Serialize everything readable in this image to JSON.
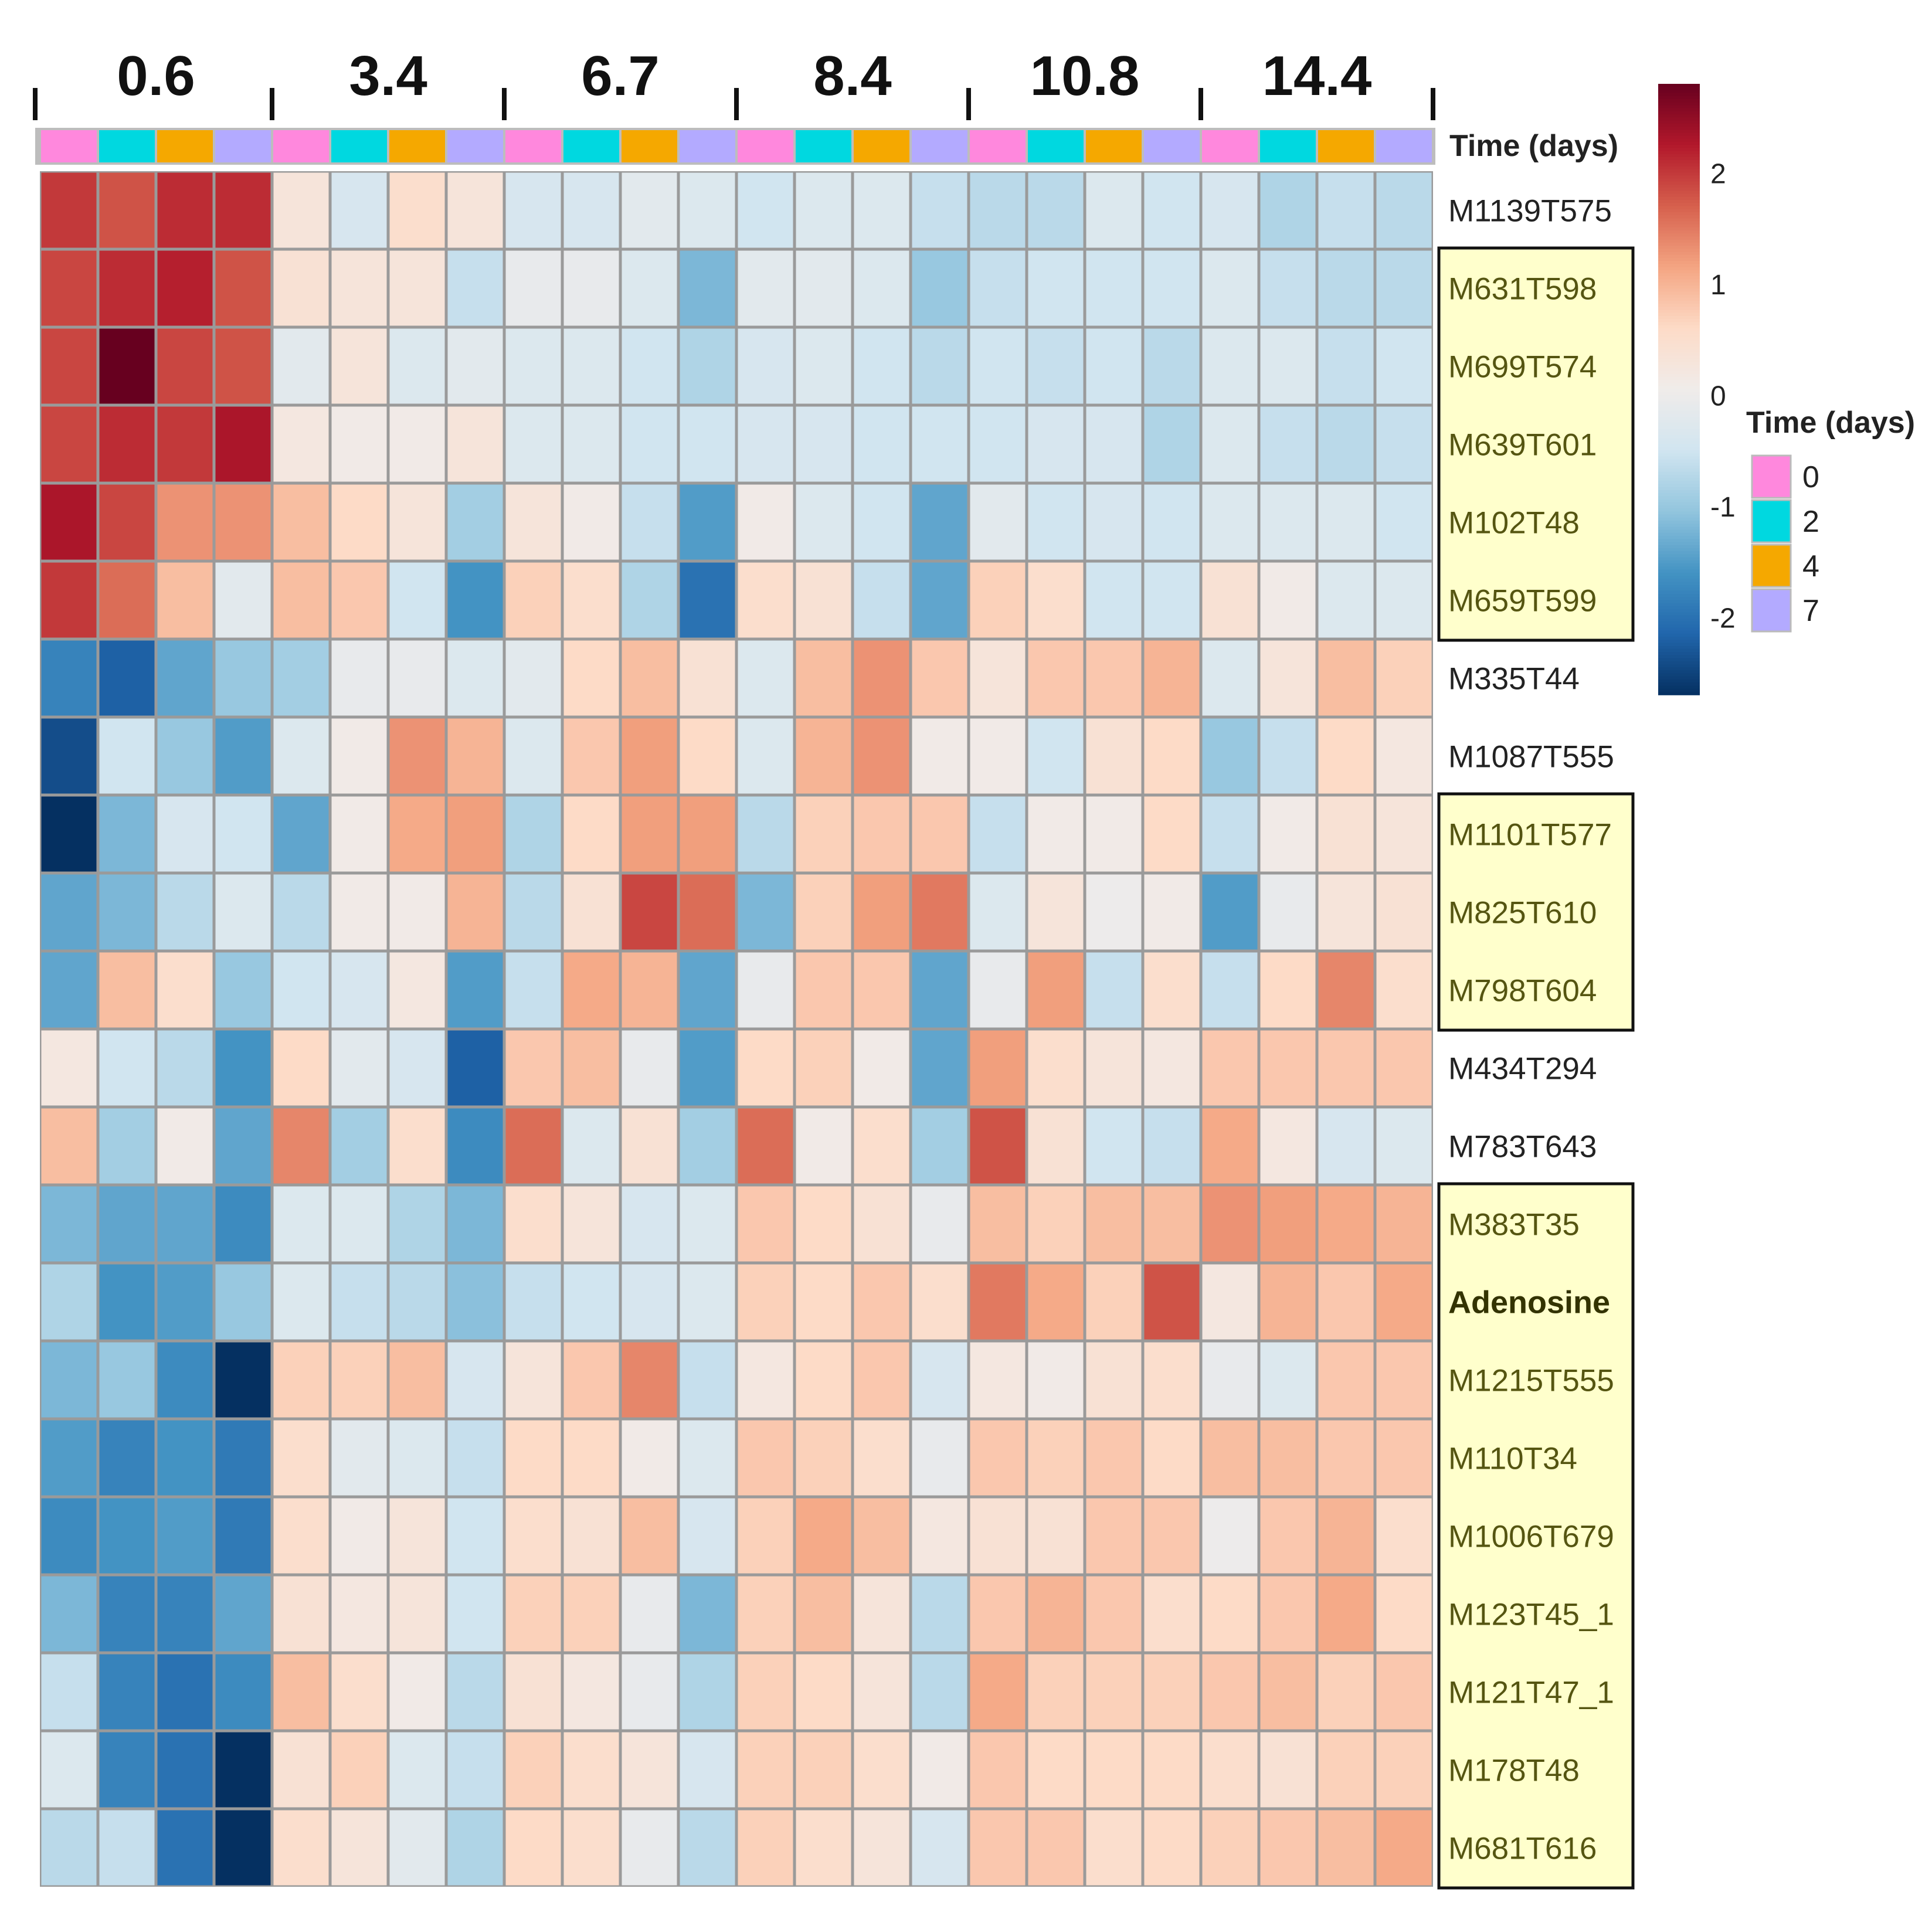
{
  "chart_data": {
    "type": "heatmap",
    "groups": [
      "0.6",
      "3.4",
      "6.7",
      "8.4",
      "10.8",
      "14.4"
    ],
    "annotation_title": "Time (days)",
    "columns_time_days": [
      "0",
      "2",
      "4",
      "7",
      "0",
      "2",
      "4",
      "7",
      "0",
      "2",
      "4",
      "7",
      "0",
      "2",
      "4",
      "7",
      "0",
      "2",
      "4",
      "7",
      "0",
      "2",
      "4",
      "7"
    ],
    "rows": [
      "M1139T575",
      "M631T598",
      "M699T574",
      "M639T601",
      "M102T48",
      "M659T599",
      "M335T44",
      "M1087T555",
      "M1101T577",
      "M825T610",
      "M798T604",
      "M434T294",
      "M783T643",
      "M383T35",
      "Adenosine",
      "M1215T555",
      "M110T34",
      "M1006T679",
      "M123T45_1",
      "M121T47_1",
      "M178T48",
      "M681T616"
    ],
    "highlighted_rows": [
      "M631T598",
      "M699T574",
      "M639T601",
      "M102T48",
      "M659T599",
      "M1101T577",
      "M825T610",
      "M798T604",
      "M383T35",
      "Adenosine",
      "M1215T555",
      "M110T34",
      "M1006T679",
      "M123T45_1",
      "M121T47_1",
      "M178T48",
      "M681T616"
    ],
    "bold_rows": [
      "Adenosine"
    ],
    "values": [
      [
        2.0,
        1.8,
        2.1,
        2.1,
        0.3,
        -0.4,
        0.5,
        0.3,
        -0.4,
        -0.4,
        -0.2,
        -0.3,
        -0.5,
        -0.3,
        -0.3,
        -0.6,
        -0.7,
        -0.7,
        -0.3,
        -0.5,
        -0.4,
        -0.8,
        -0.6,
        -0.7
      ],
      [
        1.9,
        2.1,
        2.2,
        1.8,
        0.4,
        0.3,
        0.3,
        -0.6,
        -0.1,
        -0.1,
        -0.3,
        -1.2,
        -0.2,
        -0.2,
        -0.3,
        -1.0,
        -0.6,
        -0.5,
        -0.5,
        -0.5,
        -0.3,
        -0.6,
        -0.7,
        -0.7
      ],
      [
        1.9,
        2.8,
        1.9,
        1.8,
        -0.2,
        0.3,
        -0.3,
        -0.2,
        -0.3,
        -0.3,
        -0.5,
        -0.8,
        -0.4,
        -0.3,
        -0.5,
        -0.7,
        -0.5,
        -0.6,
        -0.5,
        -0.7,
        -0.3,
        -0.3,
        -0.6,
        -0.5
      ],
      [
        1.9,
        2.1,
        2.0,
        2.3,
        0.2,
        0.1,
        0.1,
        0.3,
        -0.3,
        -0.3,
        -0.5,
        -0.5,
        -0.4,
        -0.4,
        -0.5,
        -0.5,
        -0.5,
        -0.4,
        -0.4,
        -0.8,
        -0.3,
        -0.6,
        -0.7,
        -0.6
      ],
      [
        2.3,
        1.9,
        1.3,
        1.3,
        0.9,
        0.6,
        0.3,
        -0.9,
        0.3,
        0.1,
        -0.6,
        -1.5,
        0.1,
        -0.3,
        -0.5,
        -1.4,
        -0.2,
        -0.5,
        -0.4,
        -0.5,
        -0.3,
        -0.3,
        -0.3,
        -0.5
      ],
      [
        2.0,
        1.6,
        0.9,
        -0.2,
        0.9,
        0.8,
        -0.5,
        -1.6,
        0.7,
        0.5,
        -0.8,
        -2.0,
        0.5,
        0.4,
        -0.6,
        -1.4,
        0.7,
        0.5,
        -0.5,
        -0.5,
        0.4,
        0.1,
        -0.3,
        -0.3
      ],
      [
        -1.8,
        -2.2,
        -1.4,
        -1.0,
        -0.9,
        -0.1,
        -0.1,
        -0.3,
        -0.2,
        0.6,
        0.9,
        0.4,
        -0.3,
        0.9,
        1.3,
        0.8,
        0.3,
        0.8,
        0.8,
        1.0,
        -0.3,
        0.3,
        0.9,
        0.7
      ],
      [
        -2.4,
        -0.5,
        -1.0,
        -1.5,
        -0.3,
        0.1,
        1.3,
        1.0,
        -0.3,
        0.8,
        1.2,
        0.6,
        -0.3,
        1.0,
        1.3,
        0.1,
        0.1,
        -0.5,
        0.4,
        0.6,
        -1.0,
        -0.6,
        0.6,
        0.2
      ],
      [
        -2.7,
        -1.2,
        -0.4,
        -0.5,
        -1.4,
        0.1,
        1.1,
        1.2,
        -0.8,
        0.6,
        1.2,
        1.2,
        -0.7,
        0.7,
        0.8,
        0.8,
        -0.6,
        0.1,
        0.1,
        0.6,
        -0.6,
        0.1,
        0.4,
        0.3
      ],
      [
        -1.4,
        -1.2,
        -0.7,
        -0.3,
        -0.7,
        0.1,
        0.1,
        1.0,
        -0.7,
        0.4,
        1.9,
        1.6,
        -1.2,
        0.7,
        1.2,
        1.5,
        -0.3,
        0.3,
        0.0,
        0.1,
        -1.5,
        -0.1,
        0.3,
        0.4
      ],
      [
        -1.4,
        0.9,
        0.5,
        -1.0,
        -0.5,
        -0.4,
        0.2,
        -1.5,
        -0.6,
        1.1,
        1.0,
        -1.4,
        -0.1,
        0.8,
        0.8,
        -1.4,
        -0.1,
        1.2,
        -0.6,
        0.5,
        -0.6,
        0.6,
        1.4,
        0.5
      ],
      [
        0.2,
        -0.5,
        -0.7,
        -1.6,
        0.6,
        -0.2,
        -0.4,
        -2.2,
        0.8,
        0.9,
        -0.1,
        -1.5,
        0.6,
        0.7,
        0.1,
        -1.4,
        1.2,
        0.5,
        0.3,
        0.2,
        0.8,
        0.8,
        0.8,
        0.8
      ],
      [
        0.9,
        -0.9,
        0.1,
        -1.4,
        1.4,
        -0.9,
        0.5,
        -1.7,
        1.6,
        -0.3,
        0.4,
        -0.9,
        1.6,
        0.1,
        0.5,
        -0.9,
        1.8,
        0.4,
        -0.5,
        -0.6,
        1.1,
        0.2,
        -0.4,
        -0.3
      ],
      [
        -1.2,
        -1.4,
        -1.4,
        -1.7,
        -0.3,
        -0.3,
        -0.8,
        -1.2,
        0.5,
        0.3,
        -0.4,
        -0.3,
        0.8,
        0.6,
        0.4,
        -0.1,
        0.9,
        0.7,
        0.9,
        0.9,
        1.3,
        1.2,
        1.1,
        1.0
      ],
      [
        -0.8,
        -1.6,
        -1.5,
        -1.0,
        -0.3,
        -0.6,
        -0.7,
        -1.1,
        -0.6,
        -0.5,
        -0.4,
        -0.3,
        0.7,
        0.6,
        0.8,
        0.5,
        1.5,
        1.1,
        0.7,
        1.8,
        0.2,
        1.0,
        0.8,
        1.1
      ],
      [
        -1.2,
        -1.0,
        -1.7,
        -2.7,
        0.7,
        0.7,
        0.9,
        -0.4,
        0.3,
        0.8,
        1.4,
        -0.6,
        0.2,
        0.6,
        0.8,
        -0.4,
        0.2,
        0.1,
        0.4,
        0.5,
        -0.1,
        -0.3,
        0.8,
        0.8
      ],
      [
        -1.5,
        -1.8,
        -1.6,
        -1.9,
        0.5,
        -0.2,
        -0.3,
        -0.6,
        0.6,
        0.6,
        0.1,
        -0.3,
        0.8,
        0.7,
        0.5,
        -0.1,
        0.8,
        0.7,
        0.8,
        0.6,
        0.9,
        0.9,
        0.8,
        0.8
      ],
      [
        -1.7,
        -1.6,
        -1.5,
        -1.9,
        0.5,
        0.1,
        0.3,
        -0.5,
        0.5,
        0.4,
        0.9,
        -0.4,
        0.7,
        1.1,
        0.9,
        0.2,
        0.4,
        0.4,
        0.8,
        0.8,
        0.0,
        0.8,
        1.0,
        0.5
      ],
      [
        -1.2,
        -1.8,
        -1.8,
        -1.4,
        0.4,
        0.2,
        0.3,
        -0.5,
        0.7,
        0.7,
        -0.1,
        -1.2,
        0.7,
        0.9,
        0.3,
        -0.7,
        0.8,
        1.0,
        0.8,
        0.5,
        0.6,
        0.8,
        1.1,
        0.6
      ],
      [
        -0.6,
        -1.8,
        -2.0,
        -1.7,
        0.9,
        0.5,
        0.1,
        -0.7,
        0.4,
        0.2,
        -0.1,
        -0.8,
        0.7,
        0.6,
        0.3,
        -0.7,
        1.1,
        0.7,
        0.7,
        0.7,
        0.8,
        0.9,
        0.7,
        0.8
      ],
      [
        -0.3,
        -1.8,
        -2.0,
        -2.7,
        0.4,
        0.7,
        -0.3,
        -0.6,
        0.7,
        0.5,
        0.3,
        -0.4,
        0.7,
        0.7,
        0.5,
        0.1,
        0.8,
        0.6,
        0.6,
        0.6,
        0.5,
        0.4,
        0.7,
        0.7
      ],
      [
        -0.7,
        -0.6,
        -2.0,
        -2.7,
        0.5,
        0.3,
        -0.2,
        -0.8,
        0.6,
        0.5,
        -0.1,
        -0.7,
        0.7,
        0.5,
        0.3,
        -0.4,
        0.8,
        0.8,
        0.5,
        0.6,
        0.7,
        0.8,
        0.9,
        1.1
      ]
    ],
    "color_scale": {
      "ticks": [
        "2",
        "1",
        "0",
        "-1",
        "-2"
      ],
      "colors": [
        "#053061",
        "#2166ac",
        "#4393c3",
        "#92c5de",
        "#d1e5f0",
        "#f0ecea",
        "#fddbc7",
        "#f4a582",
        "#d6604d",
        "#b2182b",
        "#67001f"
      ],
      "min": -2.7,
      "max": 2.8
    },
    "legend": {
      "title": "Time (days)",
      "items": [
        {
          "label": "0",
          "color": "#ff88dd"
        },
        {
          "label": "2",
          "color": "#00d8e0"
        },
        {
          "label": "4",
          "color": "#f5a800"
        },
        {
          "label": "7",
          "color": "#b3aaff"
        }
      ]
    }
  }
}
